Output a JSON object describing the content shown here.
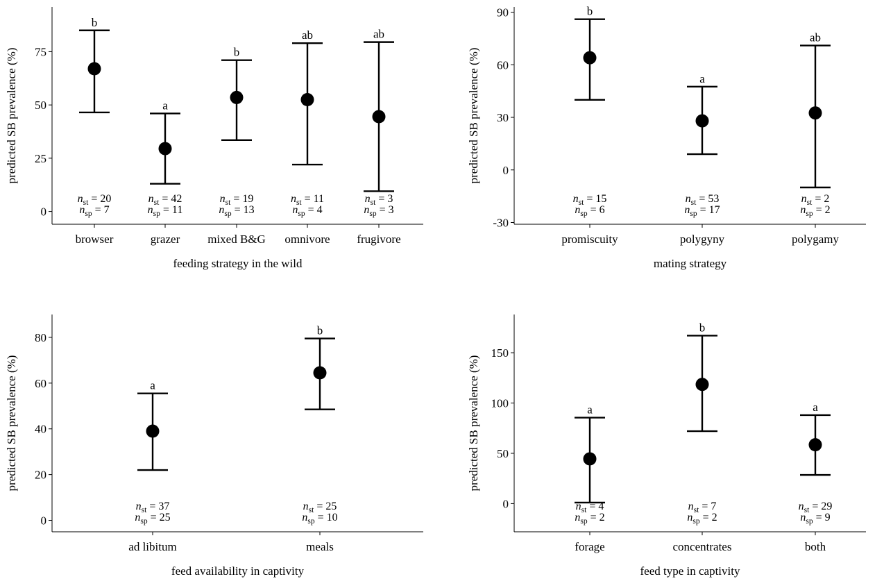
{
  "chart_data": [
    {
      "type": "errorbar",
      "xlabel": "feeding strategy in the wild",
      "ylabel": "predicted SB prevalence (%)",
      "ylim": [
        -6,
        96
      ],
      "yticks": [
        0,
        25,
        50,
        75
      ],
      "categories": [
        "browser",
        "grazer",
        "mixed B&G",
        "omnivore",
        "frugivore"
      ],
      "estimates": [
        67,
        29.5,
        53.5,
        52.5,
        44.5
      ],
      "lower": [
        46.5,
        13,
        33.5,
        22,
        9.5
      ],
      "upper": [
        85,
        46,
        71,
        79,
        79.5
      ],
      "significance": [
        "b",
        "a",
        "b",
        "ab",
        "ab"
      ],
      "n_st": [
        "20",
        "42",
        "19",
        "11",
        "3"
      ],
      "n_sp": [
        "7",
        "11",
        "13",
        "4",
        "3"
      ]
    },
    {
      "type": "errorbar",
      "xlabel": "mating strategy",
      "ylabel": "predicted SB prevalence (%)",
      "ylim": [
        -31,
        93
      ],
      "yticks": [
        -30,
        0,
        30,
        60,
        90
      ],
      "categories": [
        "promiscuity",
        "polygyny",
        "polygamy"
      ],
      "estimates": [
        64,
        28,
        32.5
      ],
      "lower": [
        40,
        9,
        -10
      ],
      "upper": [
        86,
        47.5,
        71
      ],
      "significance": [
        "b",
        "a",
        "ab"
      ],
      "n_st": [
        "15",
        "53",
        "2"
      ],
      "n_sp": [
        "6",
        "17",
        "2"
      ]
    },
    {
      "type": "errorbar",
      "xlabel": "feed availability in captivity",
      "ylabel": "predicted SB prevalence (%)",
      "ylim": [
        -5,
        90
      ],
      "yticks": [
        0,
        20,
        40,
        60,
        80
      ],
      "categories": [
        "ad libitum",
        "meals"
      ],
      "estimates": [
        39,
        64.5
      ],
      "lower": [
        22,
        48.5
      ],
      "upper": [
        55.5,
        79.5
      ],
      "significance": [
        "a",
        "b"
      ],
      "n_st": [
        "37",
        "25"
      ],
      "n_sp": [
        "25",
        "10"
      ]
    },
    {
      "type": "errorbar",
      "xlabel": "feed type in captivity",
      "ylabel": "predicted SB prevalence (%)",
      "ylim": [
        -28,
        188
      ],
      "yticks": [
        0,
        50,
        100,
        150
      ],
      "categories": [
        "forage",
        "concentrates",
        "both"
      ],
      "estimates": [
        44.5,
        118.5,
        58.5
      ],
      "lower": [
        1,
        72,
        28.5
      ],
      "upper": [
        85.5,
        167,
        88
      ],
      "significance": [
        "a",
        "b",
        "a"
      ],
      "n_st": [
        "4",
        "7",
        "29"
      ],
      "n_sp": [
        "2",
        "2",
        "9"
      ]
    }
  ]
}
